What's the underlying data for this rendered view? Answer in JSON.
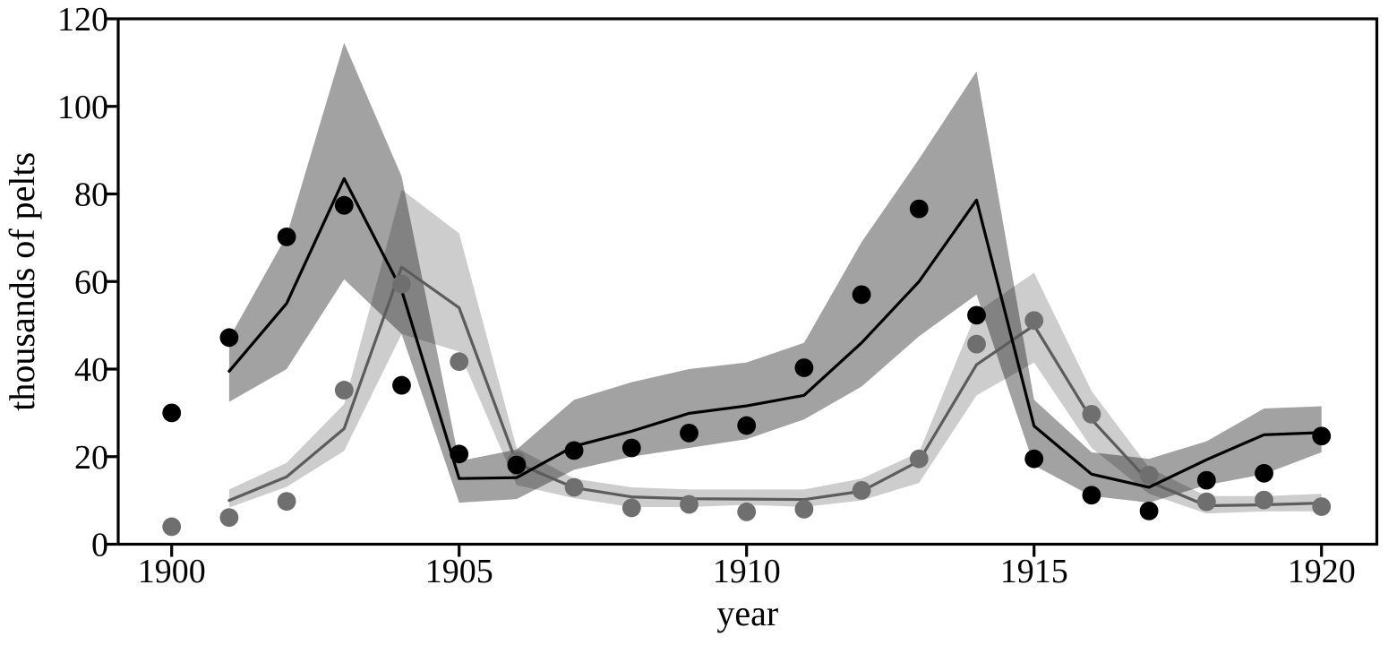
{
  "figure": {
    "background": "#ffffff",
    "description": "Scatter of observed pelt counts with model mean lines and uncertainty ribbons"
  },
  "chart_data": {
    "type": "line",
    "title": "",
    "xlabel": "year",
    "ylabel": "thousands of pelts",
    "xlim": [
      1899,
      1921
    ],
    "ylim": [
      0,
      120
    ],
    "xticks": [
      1900,
      1905,
      1910,
      1915,
      1920
    ],
    "yticks": [
      0,
      20,
      40,
      60,
      80,
      100,
      120
    ],
    "grid": false,
    "legend_position": "none",
    "frame": "full-box",
    "colors": {
      "hare_band": "rgba(0,0,0,0.365)",
      "lynx_band": "rgba(0,0,0,0.196)",
      "hare_line": "#000000",
      "lynx_line": "#5c5c5c",
      "hare_dot": "#000000",
      "lynx_dot": "#6f6f6f",
      "axis": "#000000"
    },
    "series": [
      {
        "id": "lynx-model-band",
        "name": "lynx model uncertainty band",
        "kind": "band",
        "color_key": "lynx_band",
        "x": [
          1901,
          1902,
          1903,
          1904,
          1905,
          1906,
          1907,
          1908,
          1909,
          1910,
          1911,
          1912,
          1913,
          1914,
          1915,
          1916,
          1917,
          1918,
          1919,
          1920
        ],
        "lower": [
          8.4,
          13.1,
          21.3,
          48,
          44,
          13.5,
          10.5,
          8.5,
          8.5,
          9,
          8.5,
          10,
          14,
          34,
          41.5,
          22,
          11.5,
          7,
          7.5,
          7.5
        ],
        "upper": [
          12.5,
          18.6,
          32,
          81,
          71,
          22,
          15,
          13,
          12.5,
          12.5,
          12.5,
          15,
          21,
          53,
          62,
          35,
          17.5,
          11,
          11,
          11.5
        ]
      },
      {
        "id": "hare-model-band",
        "name": "hare model uncertainty band",
        "kind": "band",
        "color_key": "hare_band",
        "x": [
          1901,
          1902,
          1903,
          1904,
          1905,
          1906,
          1907,
          1908,
          1909,
          1910,
          1911,
          1912,
          1913,
          1914,
          1915,
          1916,
          1917,
          1918,
          1919,
          1920
        ],
        "lower": [
          32.5,
          40,
          60.5,
          48,
          9.5,
          10.3,
          17,
          20,
          22,
          24,
          28.5,
          36,
          47.5,
          57,
          18,
          11,
          9.5,
          13.5,
          16,
          21
        ],
        "upper": [
          47,
          70.5,
          114.5,
          84,
          19,
          21.6,
          33,
          37,
          40,
          41.5,
          46,
          69,
          88,
          108,
          33,
          21,
          19.5,
          23.5,
          31,
          31.5
        ]
      },
      {
        "id": "lynx-model-mean",
        "name": "lynx model mean",
        "kind": "line",
        "color_key": "lynx_line",
        "width": 3.2,
        "x": [
          1901,
          1902,
          1903,
          1904,
          1905,
          1906,
          1907,
          1908,
          1909,
          1910,
          1911,
          1912,
          1913,
          1914,
          1915,
          1916,
          1917,
          1918,
          1919,
          1920
        ],
        "y": [
          10,
          15.4,
          26.4,
          63.3,
          54,
          18.5,
          12.9,
          10.8,
          10.4,
          10.3,
          10.2,
          12.1,
          19,
          41,
          50,
          28.5,
          14.3,
          8.8,
          9,
          9.4
        ]
      },
      {
        "id": "hare-model-mean",
        "name": "hare model mean",
        "kind": "line",
        "color_key": "hare_line",
        "width": 3.2,
        "x": [
          1901,
          1902,
          1903,
          1904,
          1905,
          1906,
          1907,
          1908,
          1909,
          1910,
          1911,
          1912,
          1913,
          1914,
          1915,
          1916,
          1917,
          1918,
          1919,
          1920
        ],
        "y": [
          39.5,
          55,
          83.5,
          58,
          15,
          15.2,
          22.4,
          25.8,
          29.9,
          31.6,
          34,
          46,
          60,
          78.6,
          27,
          16,
          13,
          19.3,
          25,
          25.5
        ]
      },
      {
        "id": "lynx-observed",
        "name": "lynx pelts observed",
        "kind": "scatter",
        "color_key": "lynx_dot",
        "marker_radius": 10.4,
        "x": [
          1900,
          1901,
          1902,
          1903,
          1904,
          1905,
          1906,
          1907,
          1908,
          1909,
          1910,
          1911,
          1912,
          1913,
          1914,
          1915,
          1916,
          1917,
          1918,
          1919,
          1920
        ],
        "y": [
          4,
          6.1,
          9.8,
          35.2,
          59.4,
          41.7,
          19,
          13,
          8.3,
          9.1,
          7.4,
          8,
          12.3,
          19.5,
          45.7,
          51.1,
          29.7,
          15.8,
          9.7,
          10.1,
          8.6
        ]
      },
      {
        "id": "hare-observed",
        "name": "hare pelts observed",
        "kind": "scatter",
        "color_key": "hare_dot",
        "marker_radius": 10.4,
        "x": [
          1900,
          1901,
          1902,
          1903,
          1904,
          1905,
          1906,
          1907,
          1908,
          1909,
          1910,
          1911,
          1912,
          1913,
          1914,
          1915,
          1916,
          1917,
          1918,
          1919,
          1920
        ],
        "y": [
          30,
          47.2,
          70.2,
          77.4,
          36.3,
          20.6,
          18.1,
          21.4,
          22,
          25.4,
          27.1,
          40.3,
          57,
          76.6,
          52.3,
          19.5,
          11.2,
          7.6,
          14.6,
          16.2,
          24.7
        ]
      }
    ]
  }
}
